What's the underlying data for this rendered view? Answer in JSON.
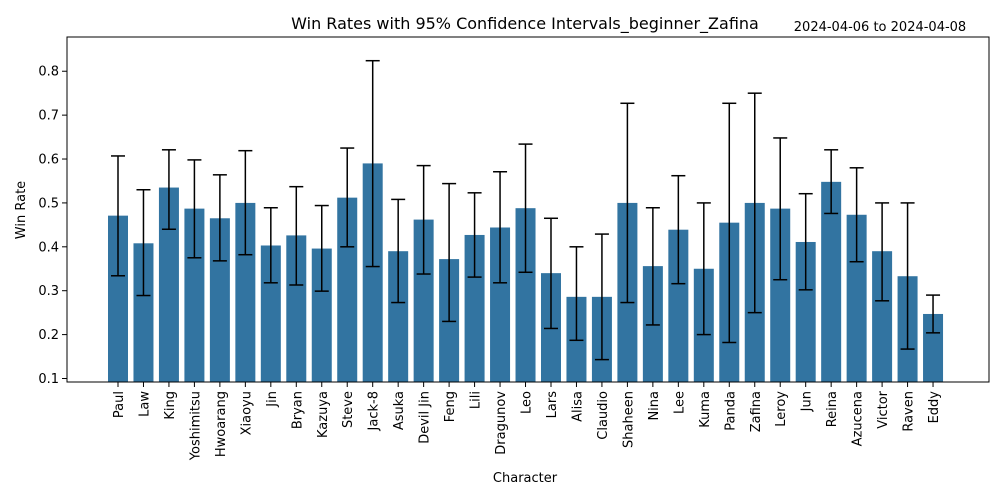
{
  "chart_data": {
    "type": "bar",
    "title": "Win Rates with 95% Confidence Intervals_beginner_Zafina",
    "date_range": "2024-04-06 to 2024-04-08",
    "xlabel": "Character",
    "ylabel": "Win Rate",
    "ylim": [
      0.092,
      0.878
    ],
    "yticks": [
      "0.1",
      "0.2",
      "0.3",
      "0.4",
      "0.5",
      "0.6",
      "0.7",
      "0.8"
    ],
    "bar_color": "#3274a1",
    "errorbar_color": "#000000",
    "grid": false,
    "categories": [
      "Paul",
      "Law",
      "King",
      "Yoshimitsu",
      "Hwoarang",
      "Xiaoyu",
      "Jin",
      "Bryan",
      "Kazuya",
      "Steve",
      "Jack-8",
      "Asuka",
      "Devil Jin",
      "Feng",
      "Lili",
      "Dragunov",
      "Leo",
      "Lars",
      "Alisa",
      "Claudio",
      "Shaheen",
      "Nina",
      "Lee",
      "Kuma",
      "Panda",
      "Zafina",
      "Leroy",
      "Jun",
      "Reina",
      "Azucena",
      "Victor",
      "Raven",
      "Eddy"
    ],
    "values": [
      0.471,
      0.408,
      0.535,
      0.487,
      0.465,
      0.5,
      0.403,
      0.426,
      0.396,
      0.512,
      0.59,
      0.39,
      0.462,
      0.372,
      0.427,
      0.444,
      0.488,
      0.34,
      0.286,
      0.286,
      0.5,
      0.356,
      0.439,
      0.35,
      0.455,
      0.5,
      0.487,
      0.411,
      0.548,
      0.473,
      0.39,
      0.333,
      0.247
    ],
    "ci_low": [
      0.334,
      0.289,
      0.44,
      0.375,
      0.368,
      0.382,
      0.318,
      0.313,
      0.299,
      0.4,
      0.355,
      0.273,
      0.338,
      0.23,
      0.331,
      0.318,
      0.342,
      0.214,
      0.187,
      0.143,
      0.273,
      0.222,
      0.316,
      0.2,
      0.182,
      0.25,
      0.325,
      0.302,
      0.476,
      0.366,
      0.277,
      0.167,
      0.204
    ],
    "ci_high": [
      0.607,
      0.53,
      0.621,
      0.598,
      0.564,
      0.619,
      0.489,
      0.537,
      0.494,
      0.625,
      0.824,
      0.508,
      0.585,
      0.544,
      0.523,
      0.571,
      0.634,
      0.465,
      0.4,
      0.429,
      0.727,
      0.489,
      0.562,
      0.5,
      0.727,
      0.75,
      0.648,
      0.521,
      0.621,
      0.58,
      0.5,
      0.5,
      0.29
    ]
  }
}
